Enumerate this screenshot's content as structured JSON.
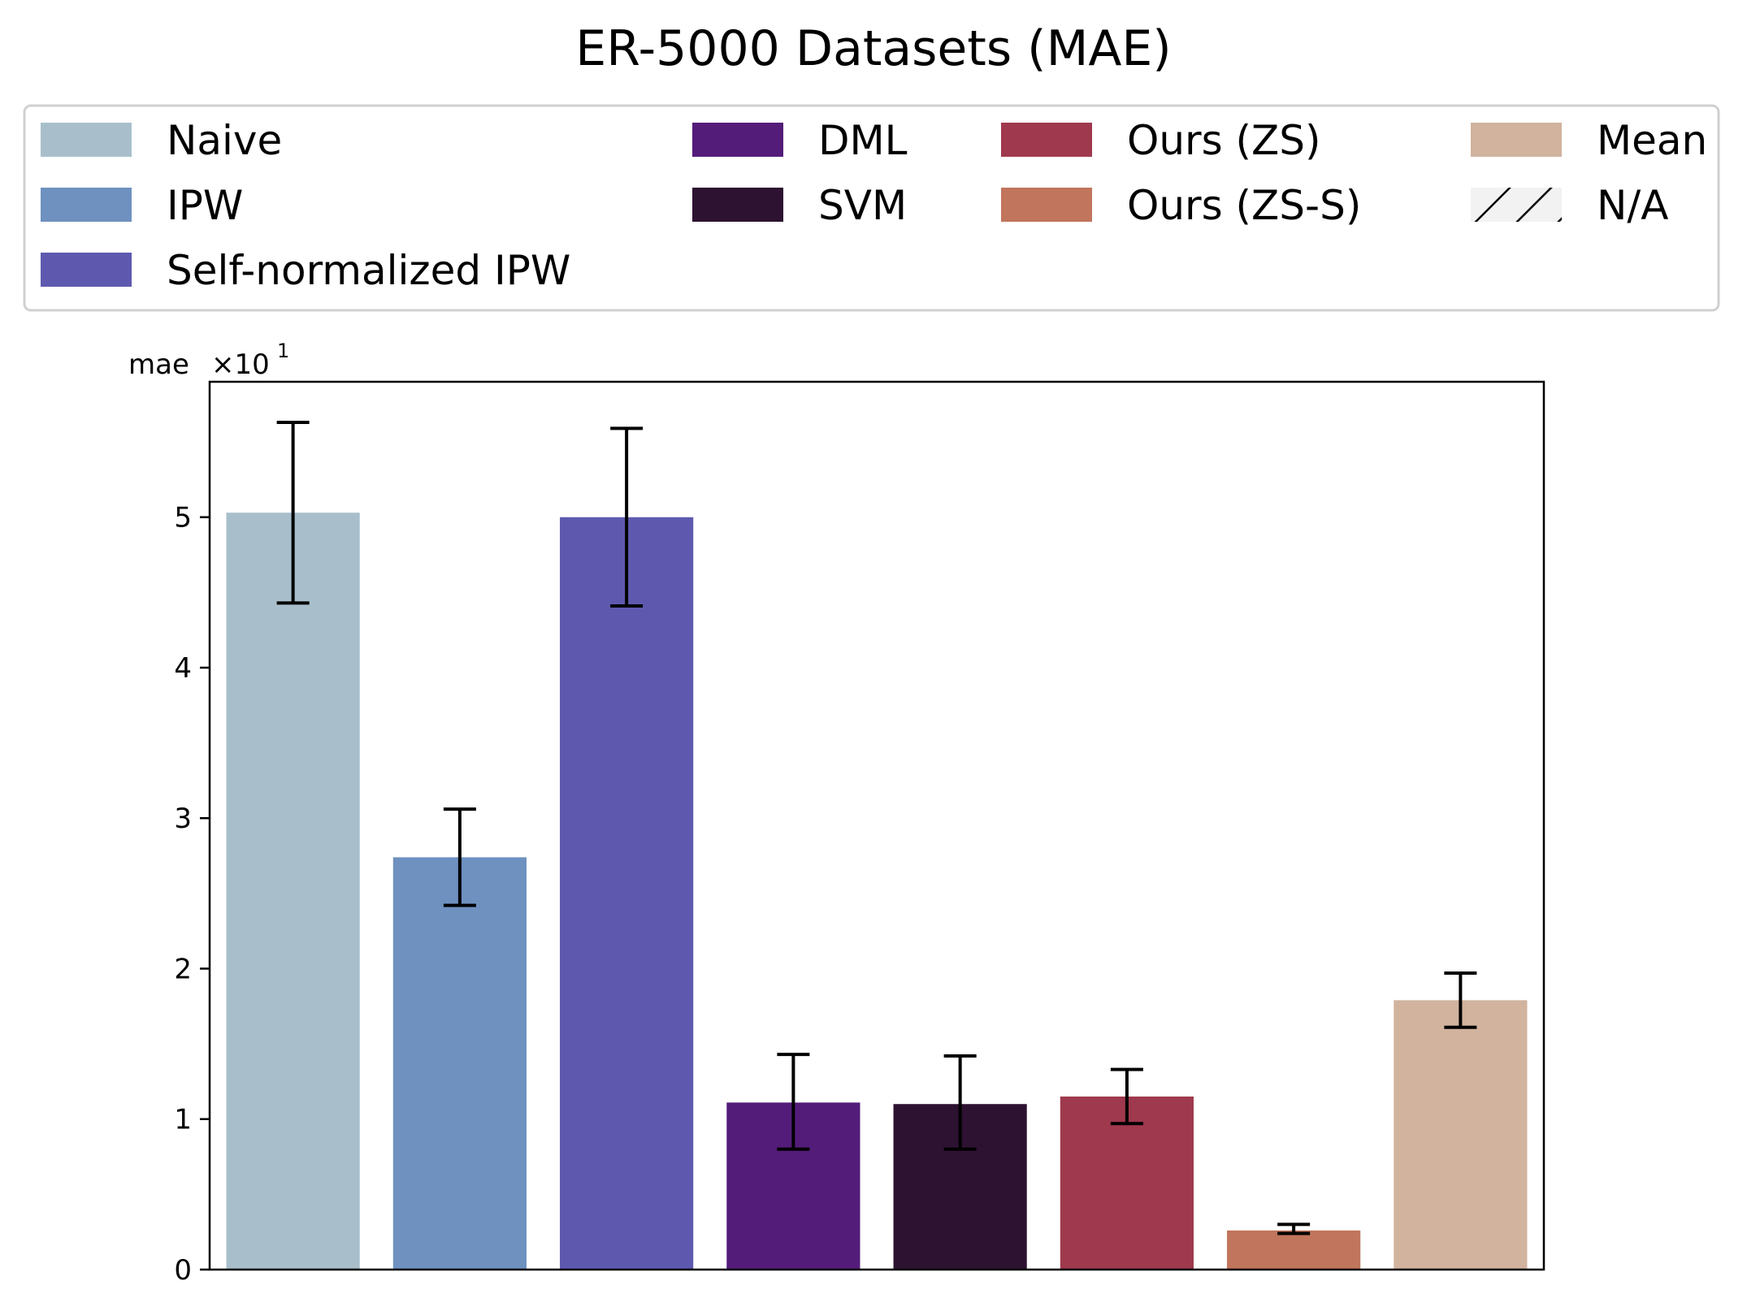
{
  "chart_data": {
    "type": "bar",
    "title": "ER-5000 Datasets (MAE)",
    "ylabel": "mae",
    "y_multiplier": "×10",
    "y_multiplier_exp": "1",
    "xlabel": "",
    "ylim": [
      0,
      5.9
    ],
    "yticks": [
      0,
      1,
      2,
      3,
      4,
      5
    ],
    "grid": false,
    "legend_position": "top",
    "categories": [
      "Naive",
      "IPW",
      "Self-normalized IPW",
      "DML",
      "SVM",
      "Ours (ZS)",
      "Ours (ZS-S)",
      "Mean"
    ],
    "values": [
      5.03,
      2.74,
      5.0,
      1.11,
      1.1,
      1.15,
      0.26,
      1.79
    ],
    "errors": [
      [
        4.43,
        5.63
      ],
      [
        2.42,
        3.06
      ],
      [
        4.41,
        5.59
      ],
      [
        0.8,
        1.43
      ],
      [
        0.8,
        1.42
      ],
      [
        0.97,
        1.33
      ],
      [
        0.24,
        0.3
      ],
      [
        1.61,
        1.97
      ]
    ],
    "colors": [
      "#a8bfcb",
      "#6e91c0",
      "#5e59af",
      "#531c79",
      "#2e1231",
      "#9f394d",
      "#c1755d",
      "#d1b39e"
    ],
    "legend": [
      {
        "label": "Naive",
        "color": "#a8bfcb"
      },
      {
        "label": "IPW",
        "color": "#6e91c0"
      },
      {
        "label": "Self-normalized IPW",
        "color": "#5e59af"
      },
      {
        "label": "DML",
        "color": "#531c79"
      },
      {
        "label": "SVM",
        "color": "#2e1231"
      },
      {
        "label": "Ours (ZS)",
        "color": "#9f394d"
      },
      {
        "label": "Ours (ZS-S)",
        "color": "#c1755d"
      },
      {
        "label": "Mean",
        "color": "#d1b39e"
      },
      {
        "label": "N/A",
        "color": "#f2f2f2",
        "hatch": true
      }
    ]
  }
}
